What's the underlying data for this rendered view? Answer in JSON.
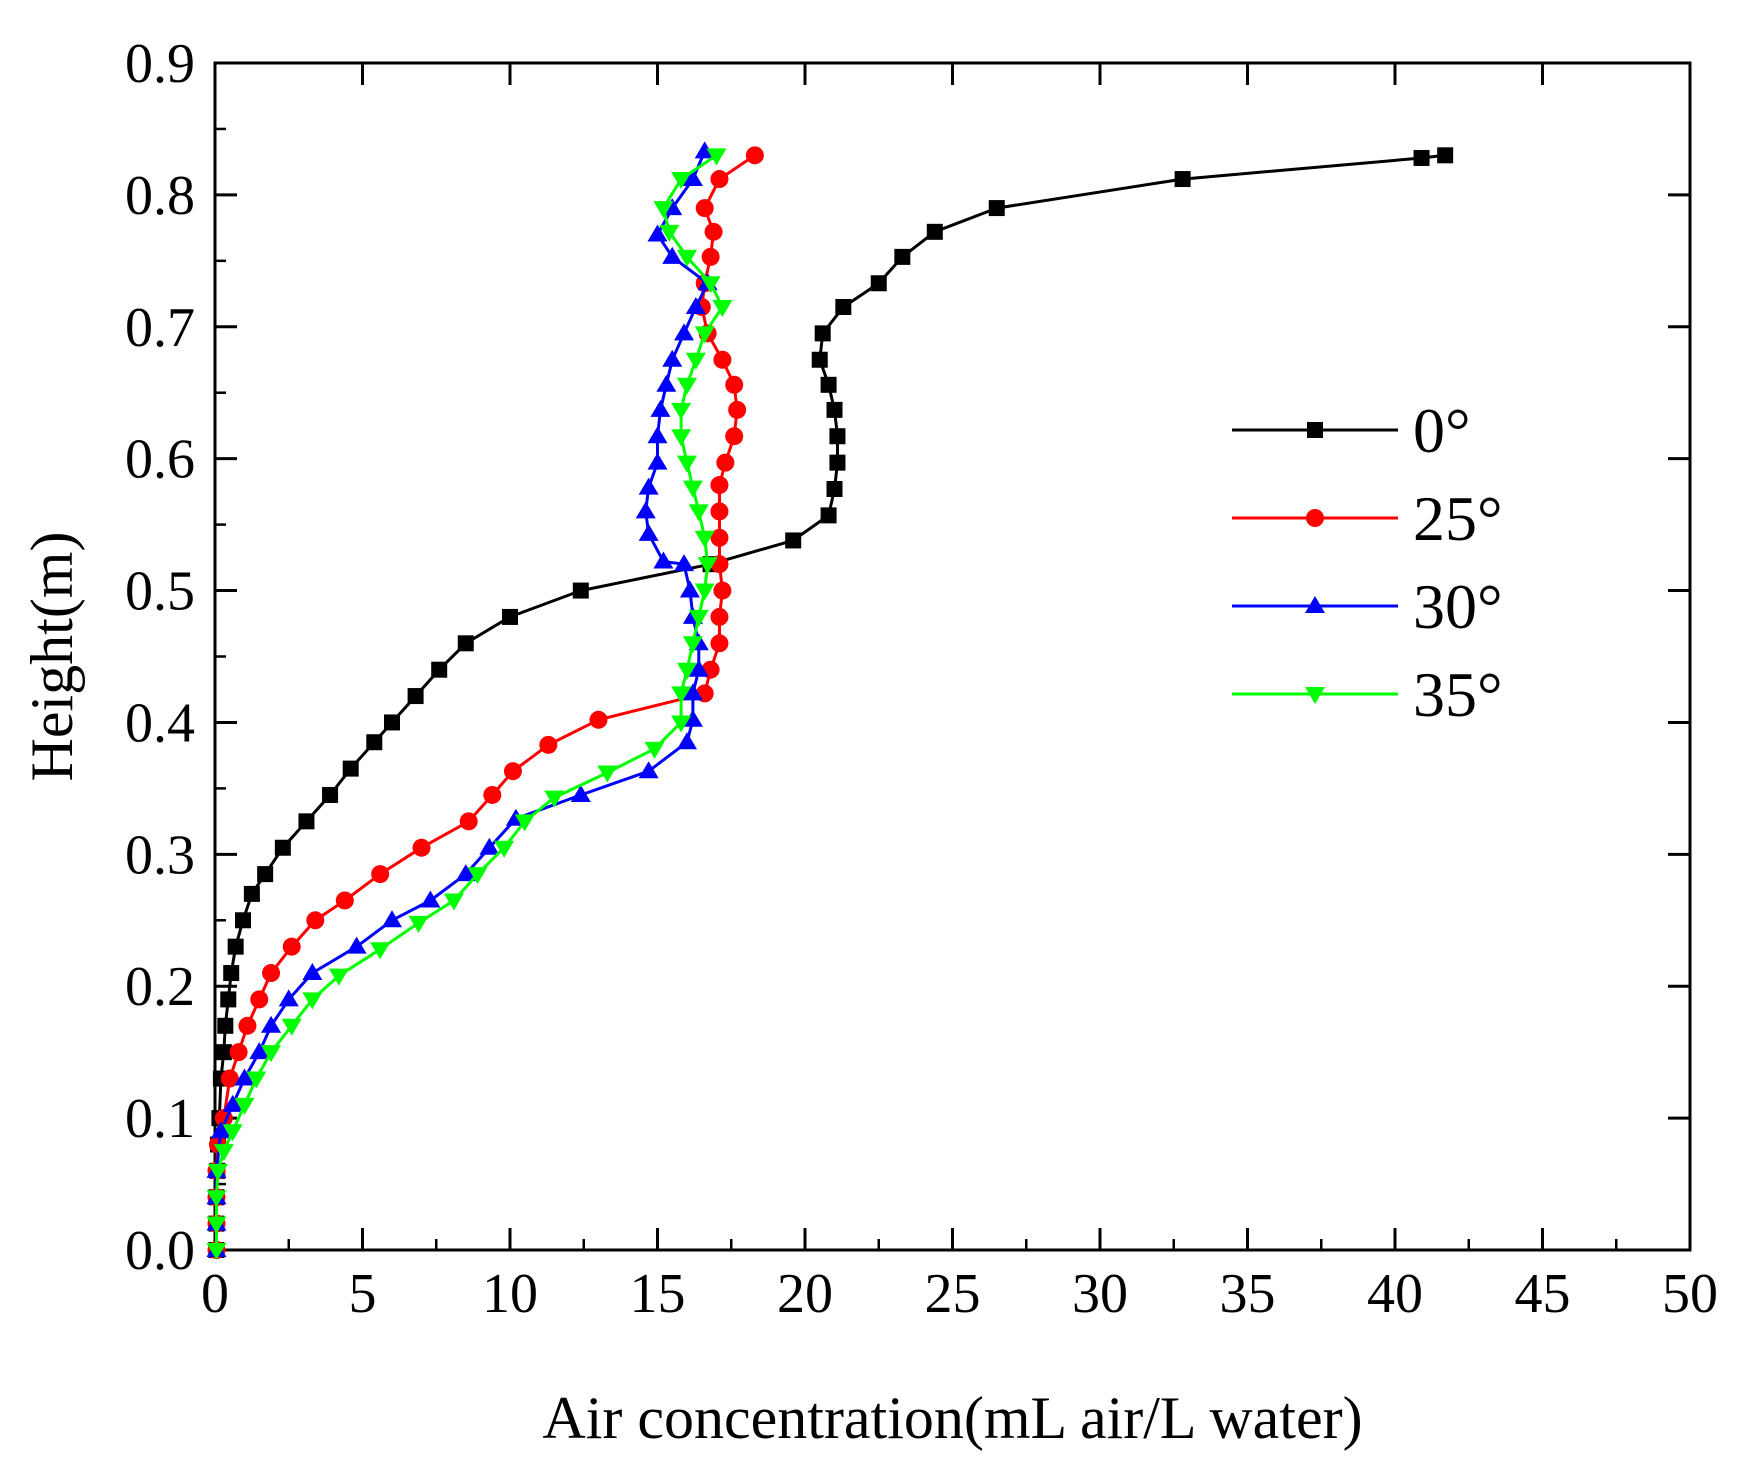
{
  "chart_data": {
    "type": "line",
    "title": "",
    "xlabel": "Air concentration(mL air/L water)",
    "ylabel": "Height(m)",
    "xlim": [
      0,
      50
    ],
    "ylim": [
      0,
      0.9
    ],
    "xticks": [
      0,
      5,
      10,
      15,
      20,
      25,
      30,
      35,
      40,
      45,
      50
    ],
    "yticks": [
      "0.0",
      "0.1",
      "0.2",
      "0.3",
      "0.4",
      "0.5",
      "0.6",
      "0.7",
      "0.8",
      "0.9"
    ],
    "grid": false,
    "legend_position": "right",
    "series": [
      {
        "name": "0°",
        "color": "#000000",
        "marker": "square",
        "points": [
          [
            0.05,
            0.0
          ],
          [
            0.05,
            0.02
          ],
          [
            0.05,
            0.04
          ],
          [
            0.08,
            0.06
          ],
          [
            0.1,
            0.08
          ],
          [
            0.15,
            0.1
          ],
          [
            0.2,
            0.13
          ],
          [
            0.3,
            0.15
          ],
          [
            0.35,
            0.17
          ],
          [
            0.45,
            0.19
          ],
          [
            0.55,
            0.21
          ],
          [
            0.7,
            0.23
          ],
          [
            0.95,
            0.25
          ],
          [
            1.25,
            0.27
          ],
          [
            1.7,
            0.285
          ],
          [
            2.3,
            0.305
          ],
          [
            3.1,
            0.325
          ],
          [
            3.9,
            0.345
          ],
          [
            4.6,
            0.365
          ],
          [
            5.4,
            0.385
          ],
          [
            6.0,
            0.4
          ],
          [
            6.8,
            0.42
          ],
          [
            7.6,
            0.44
          ],
          [
            8.5,
            0.46
          ],
          [
            10.0,
            0.48
          ],
          [
            12.4,
            0.5
          ],
          [
            16.8,
            0.52
          ],
          [
            19.6,
            0.538
          ],
          [
            20.8,
            0.557
          ],
          [
            21.0,
            0.577
          ],
          [
            21.1,
            0.597
          ],
          [
            21.1,
            0.617
          ],
          [
            21.0,
            0.637
          ],
          [
            20.8,
            0.656
          ],
          [
            20.5,
            0.675
          ],
          [
            20.6,
            0.695
          ],
          [
            21.3,
            0.715
          ],
          [
            22.5,
            0.733
          ],
          [
            23.3,
            0.753
          ],
          [
            24.4,
            0.772
          ],
          [
            26.5,
            0.79
          ],
          [
            32.8,
            0.812
          ],
          [
            40.9,
            0.828
          ],
          [
            41.7,
            0.83
          ]
        ]
      },
      {
        "name": "25°",
        "color": "#ff0000",
        "marker": "circle",
        "points": [
          [
            0.05,
            0.0
          ],
          [
            0.05,
            0.02
          ],
          [
            0.05,
            0.04
          ],
          [
            0.05,
            0.06
          ],
          [
            0.1,
            0.08
          ],
          [
            0.3,
            0.1
          ],
          [
            0.5,
            0.13
          ],
          [
            0.8,
            0.15
          ],
          [
            1.1,
            0.17
          ],
          [
            1.5,
            0.19
          ],
          [
            1.9,
            0.21
          ],
          [
            2.6,
            0.23
          ],
          [
            3.4,
            0.25
          ],
          [
            4.4,
            0.265
          ],
          [
            5.6,
            0.285
          ],
          [
            7.0,
            0.305
          ],
          [
            8.6,
            0.325
          ],
          [
            9.4,
            0.345
          ],
          [
            10.1,
            0.363
          ],
          [
            11.3,
            0.383
          ],
          [
            13.0,
            0.402
          ],
          [
            16.6,
            0.422
          ],
          [
            16.8,
            0.44
          ],
          [
            17.1,
            0.46
          ],
          [
            17.1,
            0.48
          ],
          [
            17.2,
            0.5
          ],
          [
            17.1,
            0.52
          ],
          [
            17.1,
            0.54
          ],
          [
            17.1,
            0.56
          ],
          [
            17.1,
            0.58
          ],
          [
            17.3,
            0.597
          ],
          [
            17.6,
            0.617
          ],
          [
            17.7,
            0.637
          ],
          [
            17.6,
            0.656
          ],
          [
            17.2,
            0.675
          ],
          [
            16.7,
            0.695
          ],
          [
            16.5,
            0.715
          ],
          [
            16.6,
            0.733
          ],
          [
            16.8,
            0.753
          ],
          [
            16.9,
            0.772
          ],
          [
            16.6,
            0.79
          ],
          [
            17.1,
            0.812
          ],
          [
            18.3,
            0.83
          ]
        ]
      },
      {
        "name": "30°",
        "color": "#0000ff",
        "marker": "triangle-up",
        "points": [
          [
            0.05,
            0.0
          ],
          [
            0.05,
            0.02
          ],
          [
            0.05,
            0.04
          ],
          [
            0.05,
            0.06
          ],
          [
            0.2,
            0.09
          ],
          [
            0.6,
            0.11
          ],
          [
            1.0,
            0.13
          ],
          [
            1.5,
            0.15
          ],
          [
            1.9,
            0.17
          ],
          [
            2.5,
            0.19
          ],
          [
            3.3,
            0.21
          ],
          [
            4.8,
            0.23
          ],
          [
            6.0,
            0.25
          ],
          [
            7.3,
            0.265
          ],
          [
            8.5,
            0.285
          ],
          [
            9.3,
            0.305
          ],
          [
            10.2,
            0.327
          ],
          [
            12.4,
            0.345
          ],
          [
            14.7,
            0.363
          ],
          [
            16.0,
            0.385
          ],
          [
            16.2,
            0.402
          ],
          [
            16.2,
            0.422
          ],
          [
            16.4,
            0.44
          ],
          [
            16.4,
            0.46
          ],
          [
            16.2,
            0.48
          ],
          [
            16.1,
            0.5
          ],
          [
            15.9,
            0.52
          ],
          [
            15.2,
            0.522
          ],
          [
            14.7,
            0.543
          ],
          [
            14.6,
            0.56
          ],
          [
            14.7,
            0.578
          ],
          [
            15.0,
            0.597
          ],
          [
            15.0,
            0.617
          ],
          [
            15.1,
            0.637
          ],
          [
            15.3,
            0.656
          ],
          [
            15.5,
            0.675
          ],
          [
            15.9,
            0.695
          ],
          [
            16.3,
            0.715
          ],
          [
            16.7,
            0.733
          ],
          [
            15.5,
            0.753
          ],
          [
            15.0,
            0.77
          ],
          [
            15.5,
            0.79
          ],
          [
            16.2,
            0.812
          ],
          [
            16.6,
            0.833
          ]
        ]
      },
      {
        "name": "35°",
        "color": "#00ff00",
        "marker": "triangle-down",
        "points": [
          [
            0.05,
            0.0
          ],
          [
            0.05,
            0.02
          ],
          [
            0.05,
            0.04
          ],
          [
            0.1,
            0.06
          ],
          [
            0.3,
            0.075
          ],
          [
            0.6,
            0.09
          ],
          [
            1.0,
            0.11
          ],
          [
            1.4,
            0.13
          ],
          [
            1.9,
            0.15
          ],
          [
            2.6,
            0.17
          ],
          [
            3.3,
            0.19
          ],
          [
            4.2,
            0.208
          ],
          [
            5.6,
            0.228
          ],
          [
            6.9,
            0.248
          ],
          [
            8.1,
            0.265
          ],
          [
            8.9,
            0.285
          ],
          [
            9.8,
            0.305
          ],
          [
            10.5,
            0.325
          ],
          [
            11.5,
            0.343
          ],
          [
            13.3,
            0.362
          ],
          [
            14.9,
            0.38
          ],
          [
            15.8,
            0.4
          ],
          [
            15.8,
            0.422
          ],
          [
            16.0,
            0.44
          ],
          [
            16.2,
            0.46
          ],
          [
            16.4,
            0.48
          ],
          [
            16.6,
            0.5
          ],
          [
            16.7,
            0.52
          ],
          [
            16.6,
            0.54
          ],
          [
            16.4,
            0.56
          ],
          [
            16.2,
            0.578
          ],
          [
            16.0,
            0.597
          ],
          [
            15.8,
            0.617
          ],
          [
            15.8,
            0.637
          ],
          [
            16.0,
            0.656
          ],
          [
            16.3,
            0.675
          ],
          [
            16.6,
            0.695
          ],
          [
            17.2,
            0.715
          ],
          [
            16.8,
            0.733
          ],
          [
            16.0,
            0.753
          ],
          [
            15.4,
            0.772
          ],
          [
            15.2,
            0.79
          ],
          [
            15.8,
            0.812
          ],
          [
            17.0,
            0.83
          ]
        ]
      }
    ]
  }
}
